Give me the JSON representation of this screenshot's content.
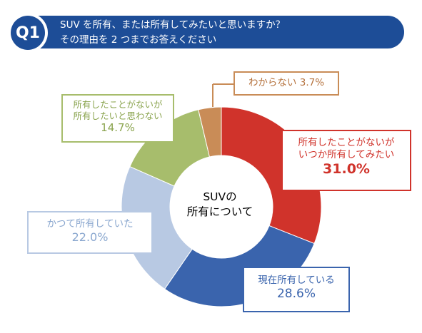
{
  "header": {
    "badge": "Q1",
    "question_line1": "SUV を所有、または所有してみたいと思いますか？",
    "question_line2": "その理由を 2 つまでお答えください"
  },
  "center_label": {
    "line1": "SUVの",
    "line2": "所有について"
  },
  "callouts": {
    "red": {
      "line1": "所有したことがないが",
      "line2": "いつか所有してみたい",
      "value": "31.0%"
    },
    "blue": {
      "line1": "現在所有している",
      "value": "28.6%"
    },
    "light": {
      "line1": "かつて所有していた",
      "value": "22.0%"
    },
    "green": {
      "line1": "所有したことがないが",
      "line2": "所有したいと思わない",
      "value": "14.7%"
    },
    "orange": {
      "line1": "わからない",
      "value": "3.7%"
    }
  },
  "chart_data": {
    "type": "pie",
    "donut": true,
    "legend": "none",
    "series": [
      {
        "name": "所有したことがないがいつか所有してみたい",
        "value": 31.0,
        "color": "#d0332b"
      },
      {
        "name": "現在所有している",
        "value": 28.6,
        "color": "#3a64ad"
      },
      {
        "name": "かつて所有していた",
        "value": 22.0,
        "color": "#b8c9e3"
      },
      {
        "name": "所有したことがないが所有したいと思わない",
        "value": 14.7,
        "color": "#a7bd6c"
      },
      {
        "name": "わからない",
        "value": 3.7,
        "color": "#c98c57"
      }
    ]
  },
  "colors": {
    "banner": "#1d4d97",
    "background": "#ffffff"
  }
}
